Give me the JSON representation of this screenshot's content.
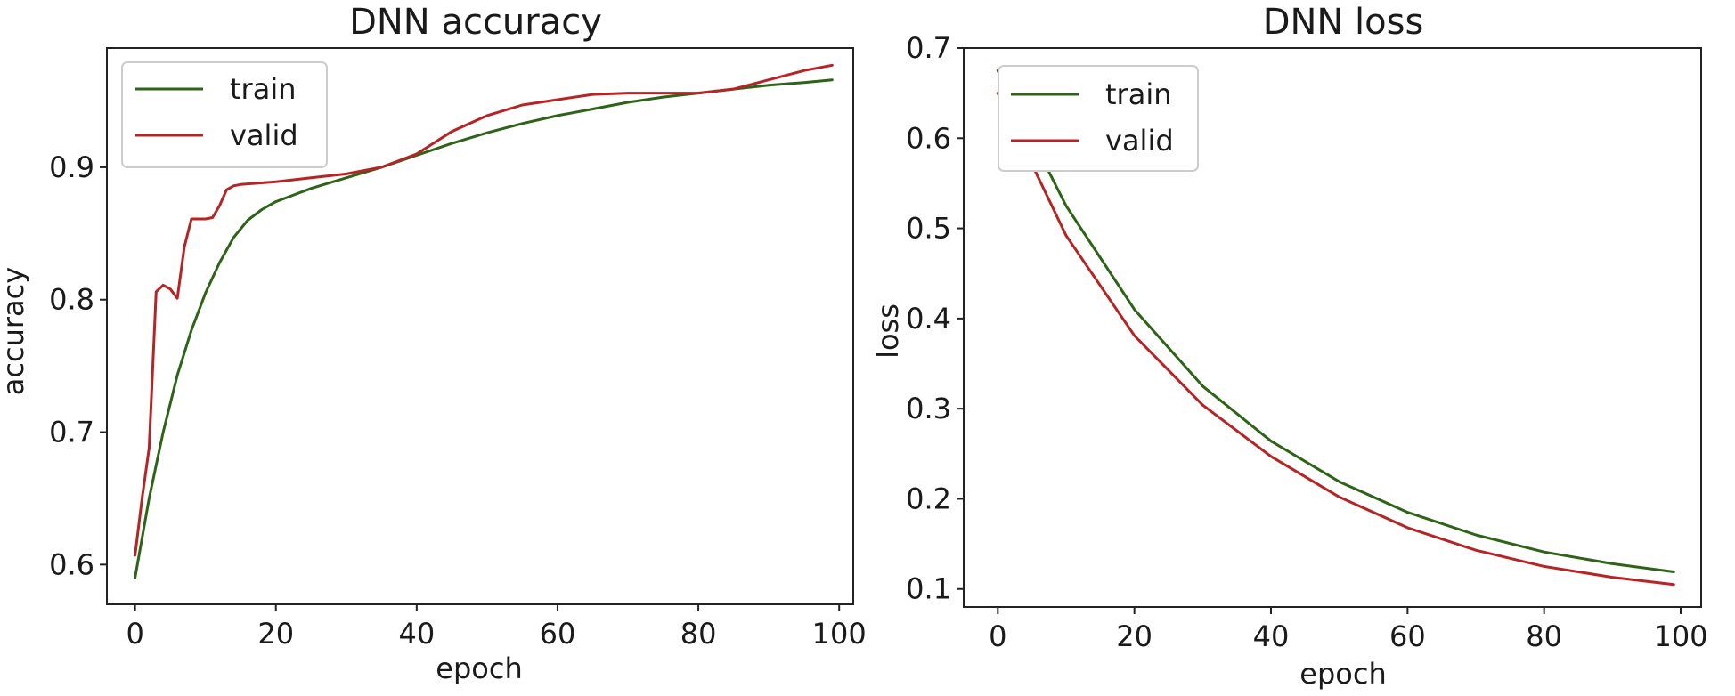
{
  "colors": {
    "train": "#2e6417",
    "valid": "#b52525",
    "axes": "#222222",
    "background": "#ffffff"
  },
  "chart_data": [
    {
      "type": "line",
      "title": "DNN accuracy",
      "xlabel": "epoch",
      "ylabel": "accuracy",
      "xlim": [
        -4,
        102
      ],
      "ylim": [
        0.57,
        0.99
      ],
      "xticks": [
        0,
        20,
        40,
        60,
        80,
        100
      ],
      "yticks": [
        0.6,
        0.7,
        0.8,
        0.9
      ],
      "xtick_labels": [
        "0",
        "20",
        "40",
        "60",
        "80",
        "100"
      ],
      "ytick_labels": [
        "0.6",
        "0.7",
        "0.8",
        "0.9"
      ],
      "grid": false,
      "legend": "top-left",
      "series": [
        {
          "name": "train",
          "color": "#2e6417",
          "x": [
            0,
            2,
            4,
            6,
            8,
            10,
            12,
            14,
            16,
            18,
            20,
            25,
            30,
            35,
            40,
            45,
            50,
            55,
            60,
            65,
            70,
            75,
            80,
            85,
            90,
            95,
            99
          ],
          "y": [
            0.59,
            0.65,
            0.7,
            0.743,
            0.777,
            0.805,
            0.828,
            0.847,
            0.86,
            0.868,
            0.874,
            0.884,
            0.892,
            0.9,
            0.909,
            0.918,
            0.926,
            0.933,
            0.939,
            0.944,
            0.949,
            0.953,
            0.956,
            0.959,
            0.962,
            0.964,
            0.966
          ]
        },
        {
          "name": "valid",
          "color": "#b52525",
          "x": [
            0,
            1,
            2,
            3,
            4,
            5,
            6,
            7,
            8,
            9,
            10,
            11,
            12,
            13,
            14,
            15,
            20,
            25,
            30,
            35,
            40,
            45,
            50,
            55,
            60,
            65,
            70,
            75,
            80,
            85,
            90,
            95,
            99
          ],
          "y": [
            0.607,
            0.65,
            0.688,
            0.806,
            0.811,
            0.808,
            0.801,
            0.84,
            0.861,
            0.861,
            0.861,
            0.862,
            0.871,
            0.883,
            0.886,
            0.887,
            0.889,
            0.892,
            0.895,
            0.9,
            0.91,
            0.927,
            0.939,
            0.947,
            0.951,
            0.955,
            0.956,
            0.956,
            0.956,
            0.959,
            0.966,
            0.973,
            0.977
          ]
        }
      ]
    },
    {
      "type": "line",
      "title": "DNN loss",
      "xlabel": "epoch",
      "ylabel": "loss",
      "xlim": [
        -5,
        103
      ],
      "ylim": [
        0.08,
        0.7
      ],
      "xticks": [
        0,
        20,
        40,
        60,
        80,
        100
      ],
      "yticks": [
        0.1,
        0.2,
        0.3,
        0.4,
        0.5,
        0.6,
        0.7
      ],
      "xtick_labels": [
        "0",
        "20",
        "40",
        "60",
        "80",
        "100"
      ],
      "ytick_labels": [
        "0.1",
        "0.2",
        "0.3",
        "0.4",
        "0.5",
        "0.6",
        "0.7"
      ],
      "grid": false,
      "legend": "top-left",
      "series": [
        {
          "name": "train",
          "color": "#2e6417",
          "x": [
            0,
            10,
            20,
            30,
            40,
            50,
            60,
            70,
            80,
            90,
            99
          ],
          "y": [
            0.675,
            0.525,
            0.41,
            0.325,
            0.264,
            0.219,
            0.185,
            0.16,
            0.141,
            0.128,
            0.119
          ]
        },
        {
          "name": "valid",
          "color": "#b52525",
          "x": [
            0,
            10,
            20,
            30,
            40,
            50,
            60,
            70,
            80,
            90,
            99
          ],
          "y": [
            0.65,
            0.492,
            0.381,
            0.304,
            0.247,
            0.202,
            0.168,
            0.143,
            0.125,
            0.113,
            0.105
          ]
        }
      ]
    }
  ]
}
